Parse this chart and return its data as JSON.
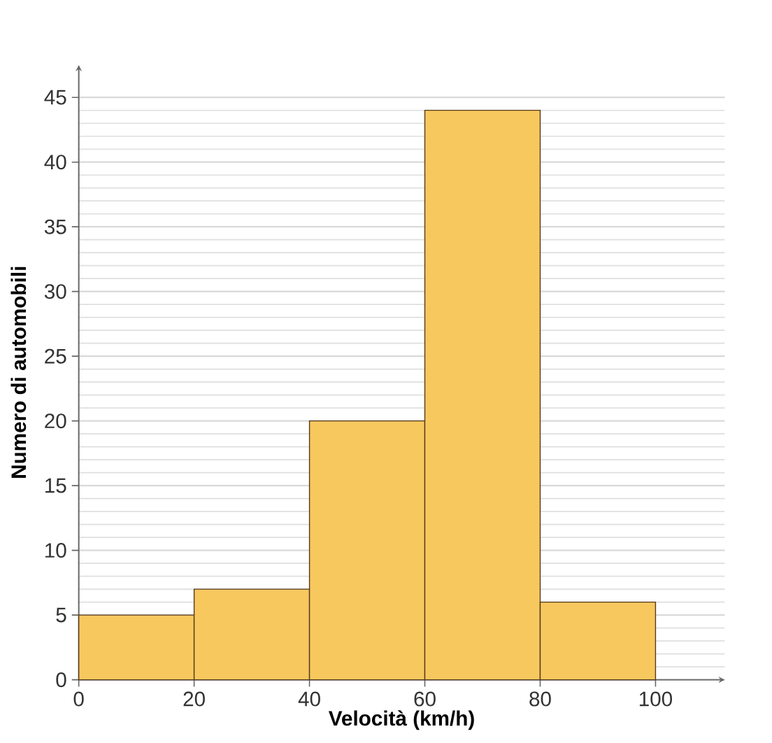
{
  "chart_data": {
    "type": "histogram",
    "xlabel": "Velocità (km/h)",
    "ylabel": "Numero di automobili",
    "bins": [
      0,
      20,
      40,
      60,
      80,
      100
    ],
    "values": [
      5,
      7,
      20,
      44,
      6
    ],
    "color": "#f7c85e",
    "xlim": [
      0,
      112
    ],
    "xticks": [
      0,
      20,
      40,
      60,
      80,
      100
    ],
    "ylim": [
      0,
      47.5
    ],
    "yticks": [
      0,
      5,
      10,
      15,
      20,
      25,
      30,
      35,
      40,
      45
    ],
    "grid": "y"
  }
}
